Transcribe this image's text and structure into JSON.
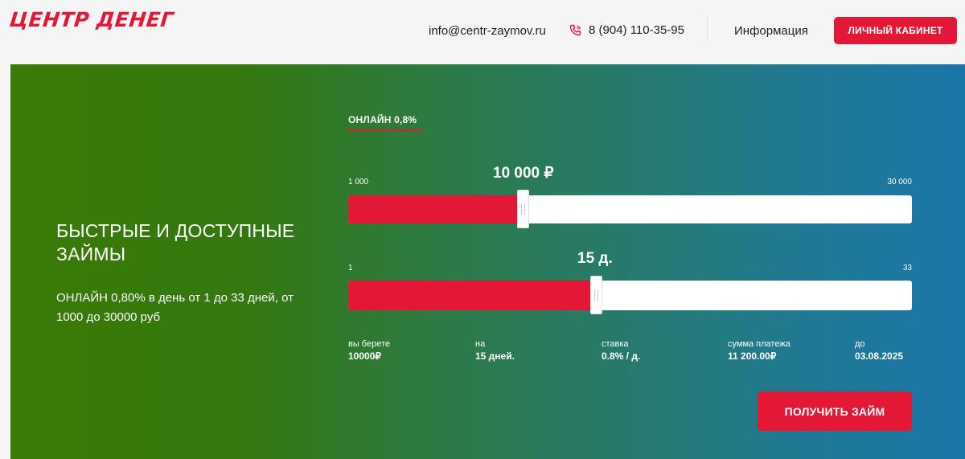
{
  "header": {
    "logo": "ЦЕНТР ДЕНЕГ",
    "email": "info@centr-zaymov.ru",
    "phone": "8 (904) 110-35-95",
    "info": "Информация",
    "cabinet": "ЛИЧНЫЙ КАБИНЕТ"
  },
  "hero": {
    "title": "БЫСТРЫЕ И ДОСТУПНЫЕ ЗАЙМЫ",
    "description": "ОНЛАЙН 0,80% в день от 1 до 33 дней, от 1000 до 30000 руб"
  },
  "calculator": {
    "tab": "ОНЛАЙН 0,8%",
    "amount": {
      "min": "1 000",
      "max": "30 000",
      "value": "10 000 ₽",
      "level": 0.31
    },
    "days": {
      "min": "1",
      "max": "33",
      "value": "15 д.",
      "level": 0.44
    },
    "summary": [
      {
        "label": "вы берете",
        "value": "10000₽"
      },
      {
        "label": "на",
        "value": "15 дней."
      },
      {
        "label": "ставка",
        "value": "0.8% / д."
      },
      {
        "label": "сумма платежа",
        "value": "11 200.00₽"
      },
      {
        "label": "до",
        "value": "03.08.2025"
      }
    ],
    "button": "ПОЛУЧИТЬ ЗАЙМ"
  },
  "colors": {
    "accent": "#e31837",
    "gradient_start": "#3b7a06",
    "gradient_end": "#1a76a8"
  }
}
